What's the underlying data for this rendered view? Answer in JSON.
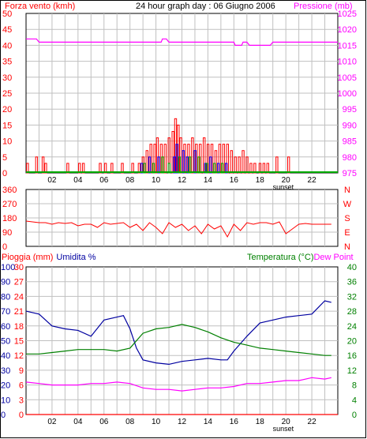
{
  "title": "24 hour graph day : 06 Giugno 2006",
  "colors": {
    "wind": "#ff0000",
    "pressure": "#ff00ff",
    "gust": "#0000ff",
    "avg": "#00aa00",
    "temp": "#008000",
    "hum": "#0000a0",
    "dew": "#ff00ff",
    "rain": "#ff0000",
    "dir": "#ff0000",
    "grid": "#c0c0c0",
    "frame": "#000000"
  },
  "x_ticks": [
    "02",
    "04",
    "06",
    "08",
    "10",
    "12",
    "14",
    "16",
    "18",
    "20",
    "22"
  ],
  "sunset_label": "sunset",
  "chart_data": [
    {
      "type": "bar",
      "id": "wind",
      "left_label": "Forza vento (kmh)",
      "right_label": "Pressione (mb)",
      "x_range": [
        0,
        24
      ],
      "y_left": {
        "min": 0,
        "max": 50,
        "ticks": [
          0,
          5,
          10,
          15,
          20,
          25,
          30,
          35,
          40,
          45,
          50
        ]
      },
      "y_right": {
        "min": 975,
        "max": 1025,
        "ticks": [
          975,
          980,
          985,
          990,
          995,
          1000,
          1005,
          1010,
          1015,
          1020,
          1025
        ]
      },
      "series": [
        {
          "name": "wind",
          "hours": [
            0.1,
            0.8,
            1.3,
            1.5,
            3.2,
            4.1,
            4.4,
            5.7,
            6.1,
            6.6,
            7.4,
            8.2,
            8.7,
            9.0,
            9.3,
            9.6,
            9.9,
            10.1,
            10.4,
            10.7,
            11.0,
            11.3,
            11.5,
            11.7,
            11.9,
            12.2,
            12.5,
            12.8,
            13.1,
            13.4,
            13.7,
            14.0,
            14.3,
            14.6,
            14.9,
            15.2,
            15.5,
            15.8,
            16.1,
            16.4,
            16.7,
            17.0,
            17.3,
            17.6,
            18.0,
            18.3,
            18.6,
            19.3,
            20.2
          ],
          "values": [
            3,
            5,
            5,
            3,
            3,
            3,
            3,
            3,
            3,
            3,
            3,
            3,
            3,
            5,
            7,
            9,
            9,
            11,
            9,
            9,
            11,
            13,
            17,
            15,
            11,
            9,
            9,
            11,
            9,
            9,
            11,
            9,
            9,
            7,
            9,
            9,
            9,
            7,
            5,
            5,
            7,
            5,
            3,
            3,
            3,
            3,
            3,
            5,
            5
          ]
        },
        {
          "name": "gust",
          "hours": [
            8.9,
            9.5,
            10.2,
            11.4,
            11.6,
            12.1,
            12.4,
            13.0,
            13.8,
            14.2,
            14.8,
            15.4
          ],
          "values": [
            3,
            5,
            5,
            5,
            9,
            7,
            5,
            7,
            3,
            5,
            3,
            3
          ]
        },
        {
          "name": "avg",
          "hours": [
            9.1,
            9.8,
            10.5,
            11.0,
            11.8,
            12.6,
            13.3,
            13.9,
            14.5,
            15.1
          ],
          "values": [
            3,
            3,
            5,
            3,
            5,
            5,
            5,
            3,
            3,
            3
          ]
        },
        {
          "name": "pressure",
          "hours": [
            0,
            0.8,
            1.0,
            10.4,
            10.5,
            10.8,
            11.0,
            16.0,
            16.1,
            16.6,
            16.7,
            17.0,
            17.2,
            18.0,
            18.2,
            18.8,
            19.0,
            19.3,
            19.4,
            24
          ],
          "values": [
            1017,
            1017,
            1016,
            1016,
            1017,
            1017,
            1016,
            1016,
            1015,
            1015,
            1016,
            1016,
            1015,
            1015,
            1015,
            1015,
            1016,
            1016,
            1016,
            1016
          ]
        }
      ]
    },
    {
      "type": "line",
      "id": "direction",
      "right_label": "N W S E N",
      "x_range": [
        0,
        24
      ],
      "y_left": {
        "min": 0,
        "max": 360,
        "ticks": [
          0,
          90,
          180,
          270,
          360
        ]
      },
      "series": [
        {
          "name": "direction",
          "hours": [
            0,
            0.5,
            1.0,
            1.5,
            2.0,
            2.5,
            3.0,
            3.5,
            4.0,
            4.5,
            5.0,
            5.5,
            6.0,
            6.5,
            7.0,
            7.5,
            8.0,
            8.5,
            9.0,
            9.5,
            10.0,
            10.5,
            11.0,
            11.5,
            12.0,
            12.5,
            13.0,
            13.5,
            14.0,
            14.5,
            15.0,
            15.5,
            16.0,
            16.5,
            17.0,
            17.5,
            18.0,
            18.5,
            19.0,
            19.5,
            20.0,
            20.5,
            21.0,
            21.5,
            22.0,
            22.5,
            23.0,
            23.5
          ],
          "values": [
            160,
            155,
            150,
            150,
            140,
            150,
            145,
            150,
            130,
            140,
            140,
            120,
            150,
            140,
            145,
            150,
            120,
            140,
            100,
            150,
            120,
            80,
            150,
            120,
            140,
            100,
            130,
            80,
            140,
            110,
            130,
            60,
            140,
            100,
            150,
            140,
            150,
            150,
            140,
            155,
            80,
            110,
            140,
            145,
            140,
            140,
            140,
            140
          ]
        }
      ]
    },
    {
      "type": "line",
      "id": "temp_hum",
      "left_label": "Pioggia (mm)  Umidita %",
      "right_label": "Temperatura (°C)Dew Point",
      "x_range": [
        0,
        24
      ],
      "y_left": {
        "min": 0,
        "max": 100,
        "ticks": [
          0,
          10,
          20,
          30,
          40,
          50,
          60,
          70,
          80,
          90,
          100
        ]
      },
      "y_left2": {
        "min": 0,
        "max": 30,
        "ticks": [
          0,
          3,
          6,
          9,
          12,
          15,
          18,
          21,
          24,
          27,
          30
        ]
      },
      "y_right": {
        "min": 0,
        "max": 40,
        "ticks": [
          0,
          4,
          8,
          12,
          16,
          20,
          24,
          28,
          32,
          36,
          40
        ]
      },
      "series": [
        {
          "name": "humidity",
          "hours": [
            0,
            1,
            2,
            3,
            4,
            5,
            6,
            7,
            7.5,
            8,
            8.5,
            9,
            10,
            11,
            12,
            13,
            14,
            15,
            15.5,
            16,
            17,
            18,
            19,
            20,
            21,
            22,
            23,
            23.5
          ],
          "values": [
            70,
            68,
            60,
            58,
            57,
            53,
            64,
            66,
            67,
            58,
            45,
            37,
            35,
            34,
            36,
            37,
            38,
            37,
            37,
            43,
            53,
            62,
            64,
            66,
            67,
            68,
            77,
            76
          ]
        },
        {
          "name": "temperature",
          "hours": [
            0,
            1,
            2,
            3,
            4,
            5,
            6,
            7,
            8,
            9,
            10,
            11,
            12,
            13,
            14,
            15,
            16,
            17,
            18,
            19,
            20,
            21,
            22,
            23,
            23.5
          ],
          "values": [
            16.4,
            16.4,
            16.8,
            17.2,
            17.6,
            17.6,
            17.6,
            17.2,
            18.0,
            22.0,
            23.2,
            23.6,
            24.4,
            23.6,
            22.4,
            20.8,
            19.6,
            18.8,
            18.0,
            17.6,
            17.2,
            16.8,
            16.4,
            16.0,
            16.0
          ]
        },
        {
          "name": "dew",
          "hours": [
            0,
            1,
            2,
            3,
            4,
            5,
            6,
            7,
            8,
            9,
            10,
            11,
            12,
            13,
            14,
            15,
            16,
            17,
            18,
            19,
            20,
            21,
            22,
            23,
            23.5
          ],
          "values": [
            8.8,
            8.4,
            8.0,
            8.0,
            8.0,
            8.4,
            8.4,
            8.8,
            8.4,
            7.2,
            6.8,
            6.8,
            6.4,
            6.8,
            7.2,
            7.2,
            7.6,
            8.4,
            8.4,
            8.8,
            9.2,
            9.2,
            10.0,
            9.6,
            10.0
          ]
        },
        {
          "name": "rain",
          "hours": [
            0,
            24
          ],
          "values": [
            0,
            0
          ]
        }
      ]
    }
  ]
}
